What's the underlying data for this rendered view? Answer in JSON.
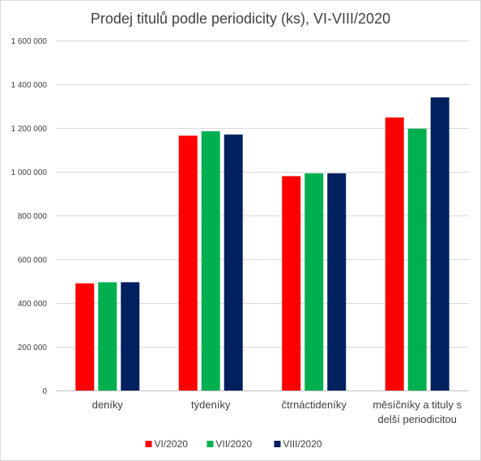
{
  "chart_data": {
    "type": "bar",
    "title": "Prodej titulů podle periodicity (ks), VI-VIII/2020",
    "xlabel": "",
    "ylabel": "",
    "ylim": [
      0,
      1600000
    ],
    "y_ticks": [
      0,
      200000,
      400000,
      600000,
      800000,
      1000000,
      1200000,
      1400000,
      1600000
    ],
    "y_tick_labels": [
      "0",
      "200 000",
      "400 000",
      "600 000",
      "800 000",
      "1 000 000",
      "1 200 000",
      "1 400 000",
      "1 600 000"
    ],
    "grid": true,
    "legend_position": "bottom",
    "categories": [
      [
        "deníky"
      ],
      [
        "týdeníky"
      ],
      [
        "čtrnáctideníky"
      ],
      [
        "měsíčníky a tituly s",
        "delší periodicitou"
      ]
    ],
    "series": [
      {
        "name": "VI/2020",
        "color": "#ff0000",
        "values": [
          490000,
          1165000,
          980000,
          1248000
        ]
      },
      {
        "name": "VII/2020",
        "color": "#00b050",
        "values": [
          495000,
          1185000,
          993000,
          1197000
        ]
      },
      {
        "name": "VIII/2020",
        "color": "#002060",
        "values": [
          495000,
          1170000,
          993000,
          1340000
        ]
      }
    ]
  }
}
